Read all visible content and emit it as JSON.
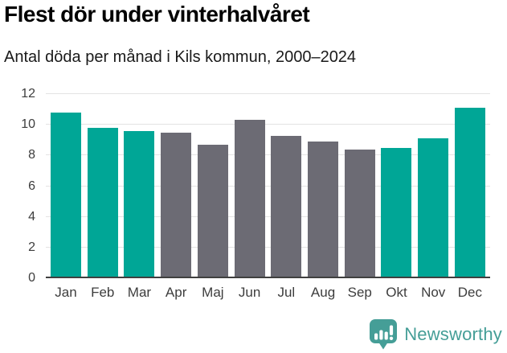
{
  "header": {
    "title": "Flest dör under vinterhalvåret",
    "subtitle": "Antal döda per månad i Kils kommun, 2000–2024"
  },
  "chart_data": {
    "type": "bar",
    "title": "Flest dör under vinterhalvåret",
    "subtitle": "Antal döda per månad i Kils kommun, 2000–2024",
    "categories": [
      "Jan",
      "Feb",
      "Mar",
      "Apr",
      "Maj",
      "Jun",
      "Jul",
      "Aug",
      "Sep",
      "Okt",
      "Nov",
      "Dec"
    ],
    "values": [
      10.8,
      9.8,
      9.6,
      9.5,
      8.7,
      10.3,
      9.3,
      8.9,
      8.4,
      8.5,
      9.1,
      11.1
    ],
    "bar_colors": [
      "teal",
      "teal",
      "teal",
      "gray",
      "gray",
      "gray",
      "gray",
      "gray",
      "gray",
      "teal",
      "teal",
      "teal"
    ],
    "palette": {
      "teal": "#00a696",
      "gray": "#6c6b74"
    },
    "xlabel": "",
    "ylabel": "",
    "ylim": [
      0,
      12
    ],
    "yticks": [
      0,
      2,
      4,
      6,
      8,
      10,
      12
    ],
    "grid": "horizontal",
    "legend": "none"
  },
  "footer": {
    "brand": "Newsworthy",
    "brand_color": "#459e97",
    "logo_icon": "bar-chart-speech-bubble-icon"
  }
}
